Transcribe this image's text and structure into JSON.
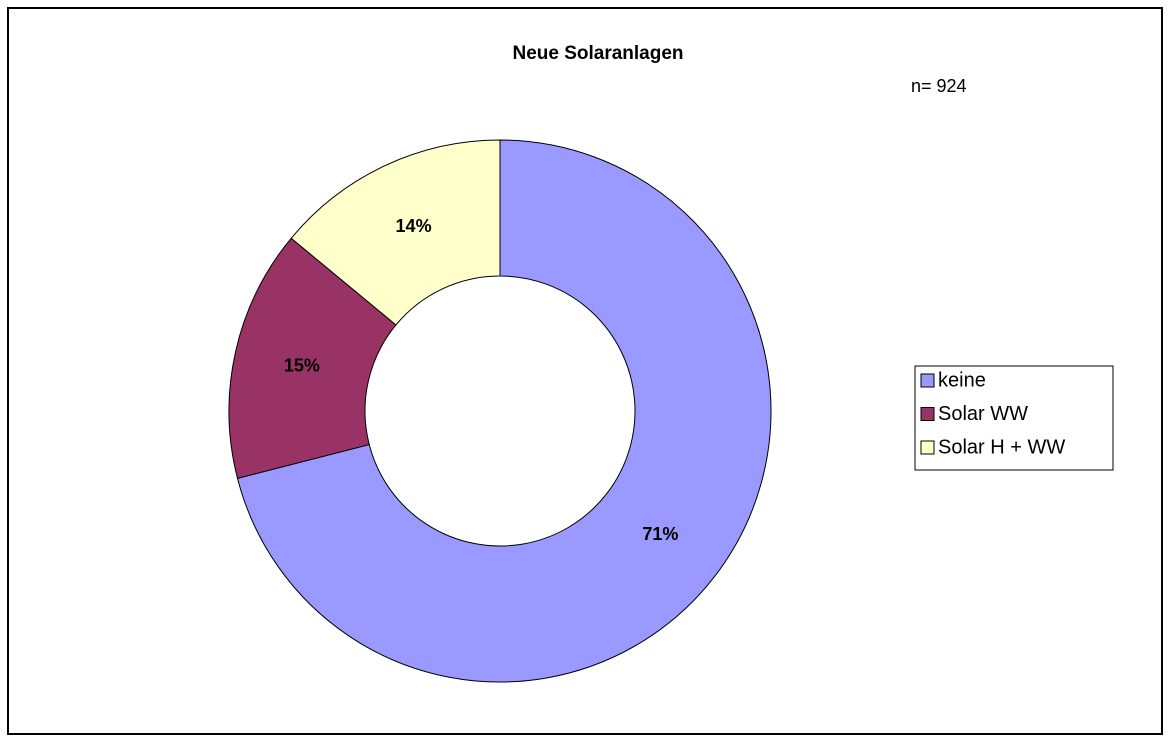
{
  "chart_data": {
    "type": "donut",
    "title": "Neue Solaranlagen",
    "annotation": "n= 924",
    "categories": [
      "keine",
      "Solar WW",
      "Solar H + WW"
    ],
    "values": [
      71,
      15,
      14
    ],
    "value_labels": [
      "71%",
      "15%",
      "14%"
    ],
    "colors": [
      "#9999ff",
      "#993366",
      "#ffffcc"
    ],
    "legend": "right"
  }
}
